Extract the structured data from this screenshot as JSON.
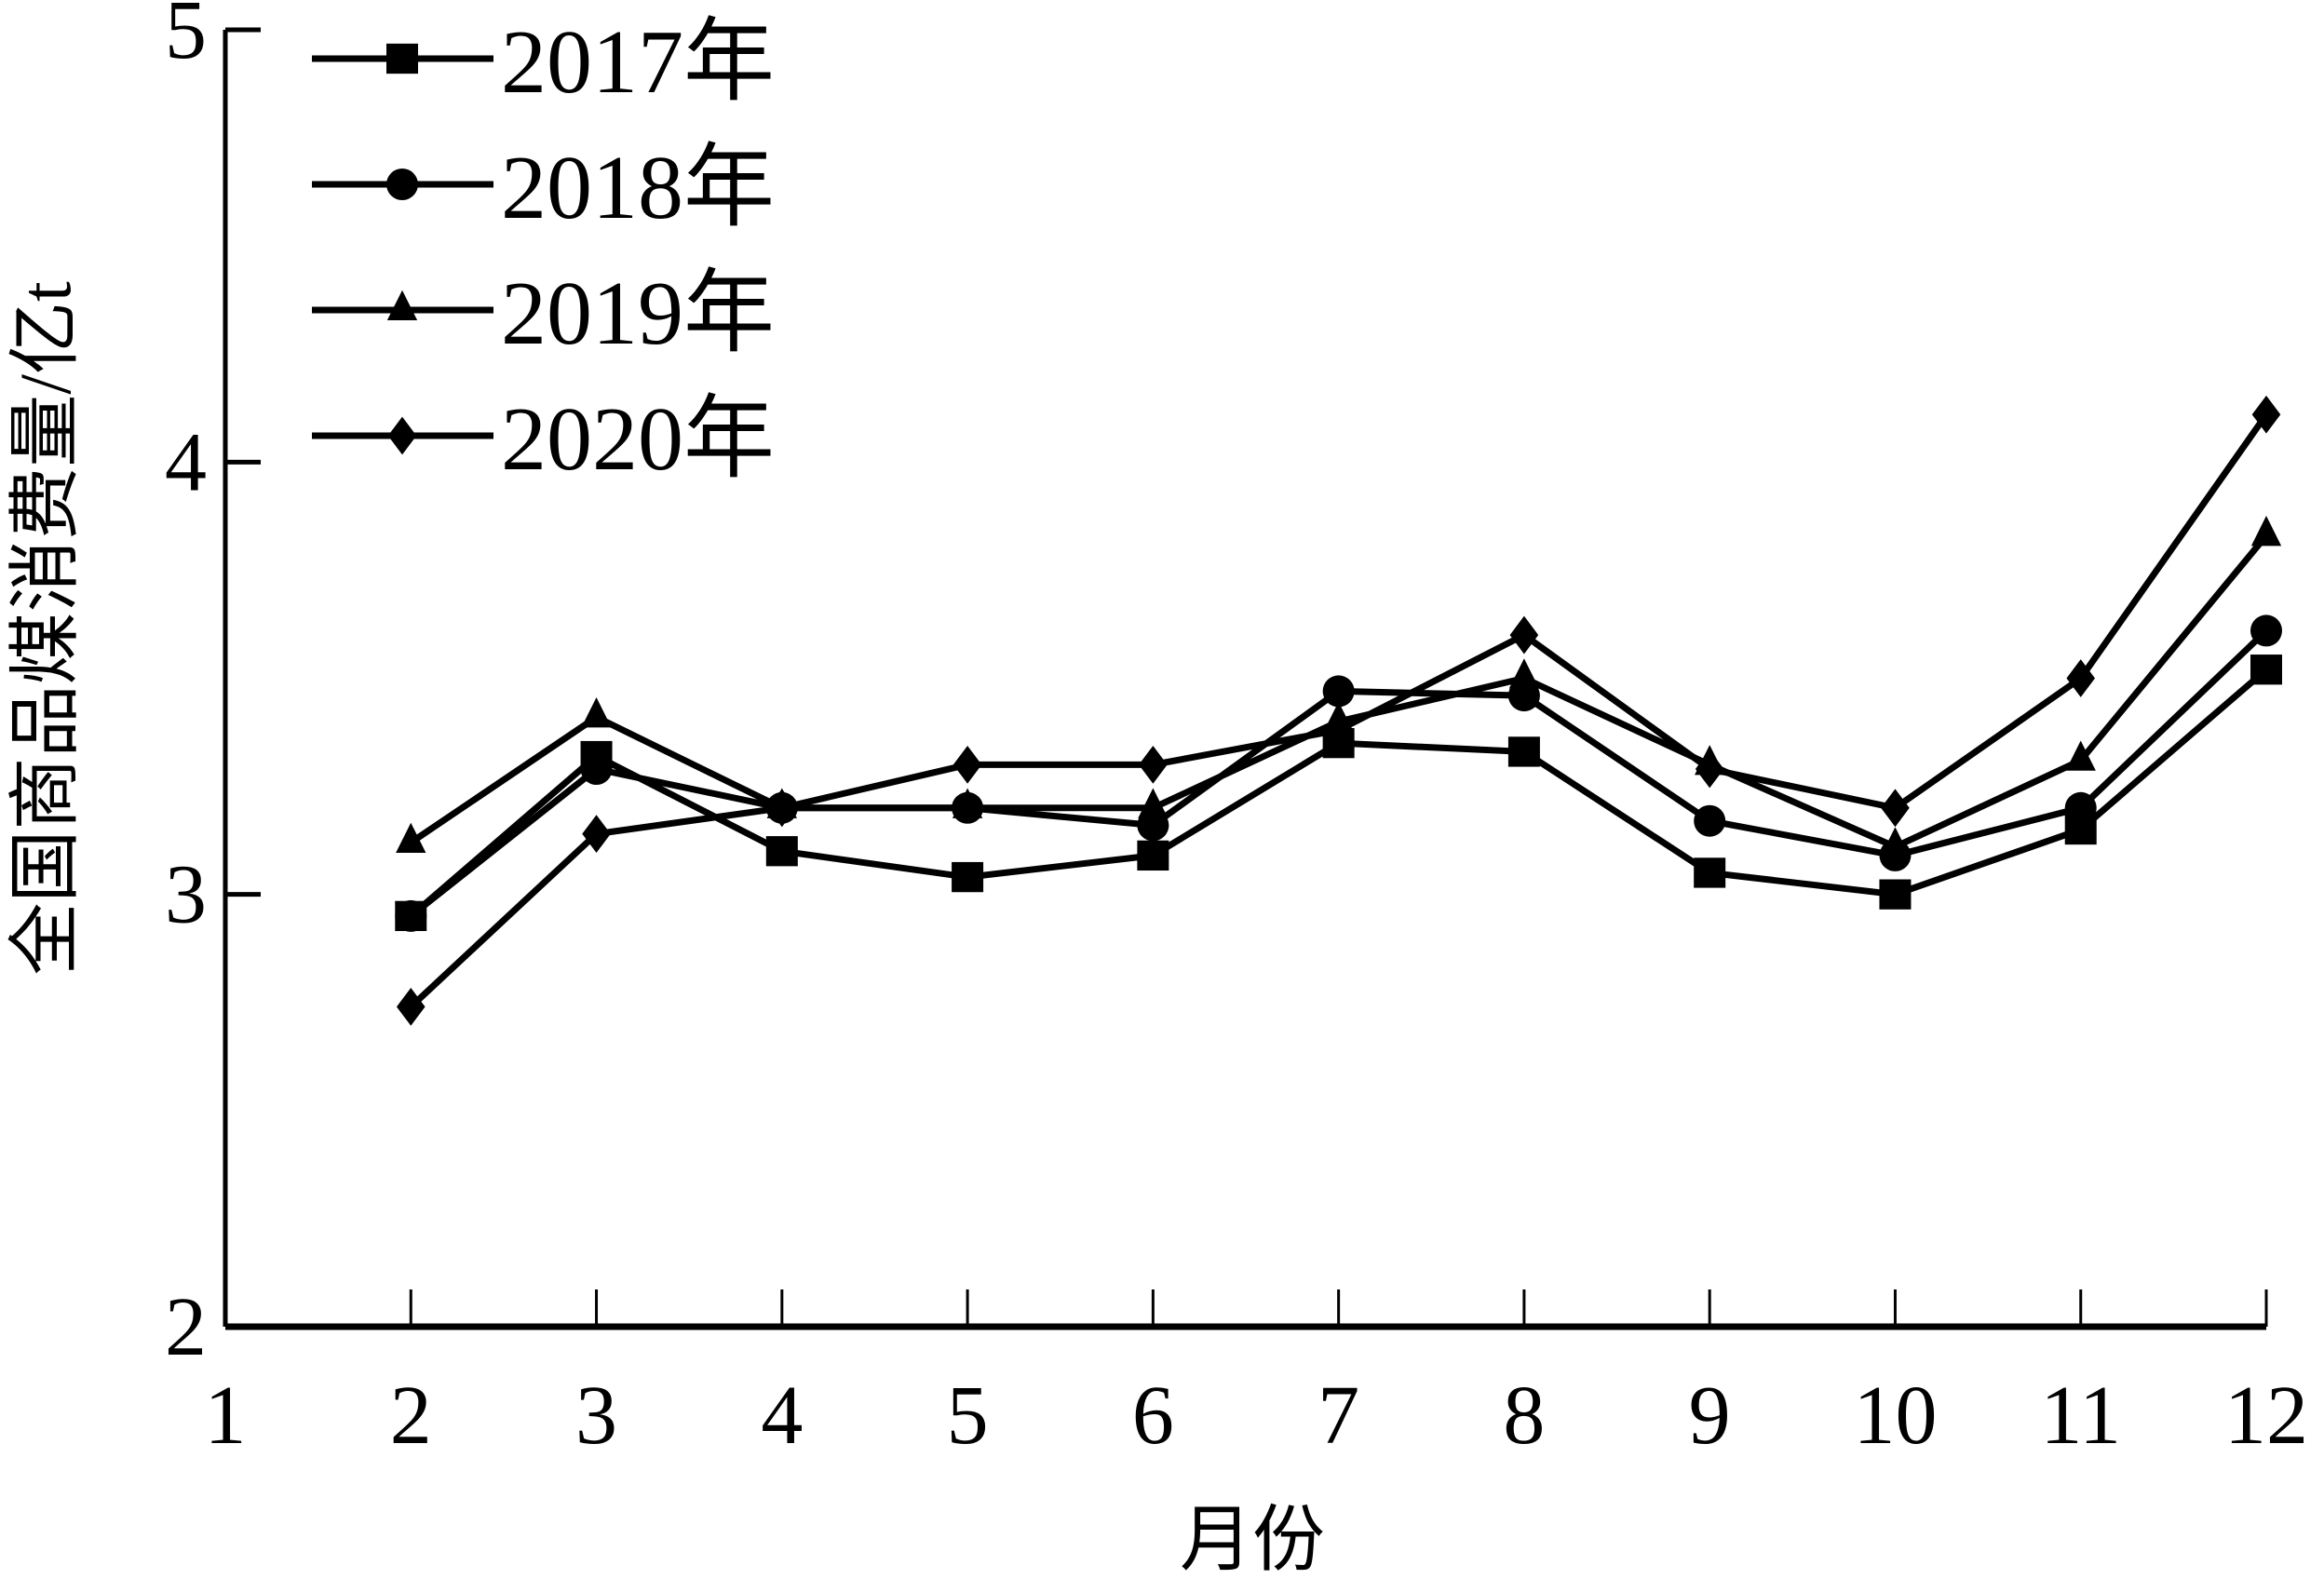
{
  "chart_data": {
    "type": "line",
    "title": "",
    "xlabel": "月份",
    "ylabel": "全国商品煤消费量/亿t",
    "x": [
      2,
      3,
      4,
      5,
      6,
      7,
      8,
      9,
      10,
      11,
      12
    ],
    "x_ticks": [
      "1",
      "2",
      "3",
      "4",
      "5",
      "6",
      "7",
      "8",
      "9",
      "10",
      "11",
      "12"
    ],
    "xlim": [
      1,
      12
    ],
    "y_ticks": [
      "2",
      "3",
      "4",
      "5"
    ],
    "ylim": [
      2,
      5
    ],
    "grid": false,
    "legend_position": "upper-left",
    "series": [
      {
        "name": "2017年",
        "marker": "square",
        "values": [
          2.95,
          3.32,
          3.1,
          3.04,
          3.09,
          3.35,
          3.33,
          3.05,
          3.0,
          3.15,
          3.52
        ]
      },
      {
        "name": "2018年",
        "marker": "circle",
        "values": [
          2.95,
          3.29,
          3.2,
          3.2,
          3.16,
          3.47,
          3.46,
          3.17,
          3.09,
          3.2,
          3.61
        ]
      },
      {
        "name": "2019年",
        "marker": "triangle",
        "values": [
          3.12,
          3.41,
          3.2,
          3.2,
          3.2,
          3.4,
          3.5,
          3.3,
          3.11,
          3.31,
          3.83
        ]
      },
      {
        "name": "2020年",
        "marker": "diamond",
        "values": [
          2.74,
          3.14,
          3.2,
          3.3,
          3.3,
          3.38,
          3.6,
          3.29,
          3.2,
          3.5,
          4.11
        ]
      }
    ]
  },
  "colors": {
    "line": "#000000",
    "background": "#ffffff"
  }
}
